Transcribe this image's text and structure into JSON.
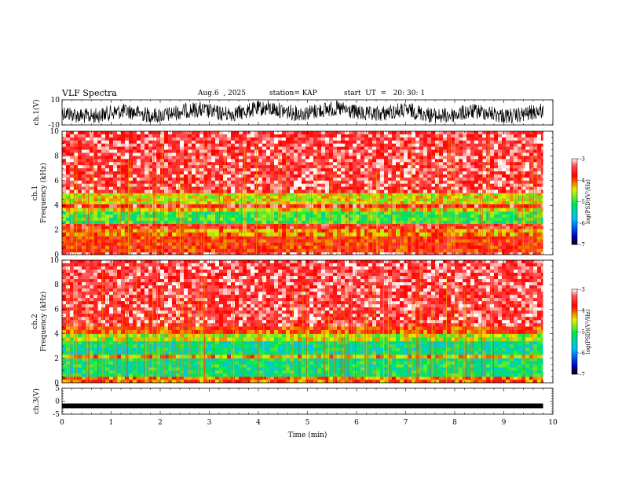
{
  "header": {
    "title": "VLF Spectra",
    "date": "Aug.6  , 2025",
    "station": "station= KAP",
    "start": "start  UT  =   20: 30: 1"
  },
  "chart_data": [
    {
      "type": "line",
      "panel": "waveform-ch1",
      "ylabel": "ch.1(V)",
      "ylim": [
        -10,
        10
      ],
      "y_ticks": [
        "10",
        "-10"
      ],
      "xlim": [
        0,
        10
      ],
      "data_extent_min": [
        0,
        9.8
      ]
    },
    {
      "type": "heatmap",
      "panel": "spectrogram-ch1",
      "ylabel_line1": "ch.1",
      "ylabel_line2": "Frequency  (kHz)",
      "ylim": [
        0,
        10
      ],
      "y_ticks": [
        "0",
        "2",
        "4",
        "6",
        "8",
        "10"
      ],
      "xlim": [
        0,
        10
      ],
      "data_extent_min": [
        0,
        9.8
      ],
      "colorbar": {
        "label": "log(PSD)(V²/Hz)",
        "range": [
          -7,
          -3
        ],
        "ticks": [
          "-3",
          "-4",
          "-5",
          "-6",
          "-7"
        ]
      },
      "bands_khz": [
        {
          "from": 0.0,
          "to": 0.2,
          "level": -3.3
        },
        {
          "from": 0.2,
          "to": 1.5,
          "level": -3.8
        },
        {
          "from": 1.5,
          "to": 2.1,
          "level": -4.2
        },
        {
          "from": 2.1,
          "to": 2.5,
          "level": -3.6
        },
        {
          "from": 2.5,
          "to": 3.5,
          "level": -5.0
        },
        {
          "from": 3.5,
          "to": 3.8,
          "level": -4.4
        },
        {
          "from": 3.8,
          "to": 4.1,
          "level": -3.5
        },
        {
          "from": 4.1,
          "to": 5.0,
          "level": -4.5
        },
        {
          "from": 5.0,
          "to": 10.0,
          "level": -3.4
        }
      ]
    },
    {
      "type": "heatmap",
      "panel": "spectrogram-ch2",
      "ylabel_line1": "ch.2",
      "ylabel_line2": "Frequency  (kHz)",
      "ylim": [
        0,
        10
      ],
      "y_ticks": [
        "0",
        "2",
        "4",
        "6",
        "8",
        "10"
      ],
      "xlim": [
        0,
        10
      ],
      "data_extent_min": [
        0,
        9.8
      ],
      "colorbar": {
        "label": "log(PSD)(V²/Hz)",
        "range": [
          -7,
          -3
        ],
        "ticks": [
          "-3",
          "-4",
          "-5",
          "-6",
          "-7"
        ]
      },
      "bands_khz": [
        {
          "from": 0.0,
          "to": 0.5,
          "level": -4.0
        },
        {
          "from": 0.5,
          "to": 2.0,
          "level": -5.2
        },
        {
          "from": 2.0,
          "to": 2.3,
          "level": -4.3
        },
        {
          "from": 2.3,
          "to": 3.4,
          "level": -5.3
        },
        {
          "from": 3.4,
          "to": 4.0,
          "level": -4.6
        },
        {
          "from": 4.0,
          "to": 4.6,
          "level": -3.9
        },
        {
          "from": 4.6,
          "to": 10.0,
          "level": -3.4
        }
      ]
    },
    {
      "type": "line",
      "panel": "waveform-ch3",
      "ylabel": "ch.3(V)",
      "ylim": [
        -5,
        5
      ],
      "y_ticks": [
        "5",
        "0",
        "-5"
      ],
      "xlim": [
        0,
        10
      ],
      "data_extent_min": [
        0,
        9.8
      ],
      "xlabel": "Time  (min)",
      "x_ticks": [
        "0",
        "1",
        "2",
        "3",
        "4",
        "5",
        "6",
        "7",
        "8",
        "9",
        "10"
      ],
      "level_v": -1.8
    }
  ]
}
